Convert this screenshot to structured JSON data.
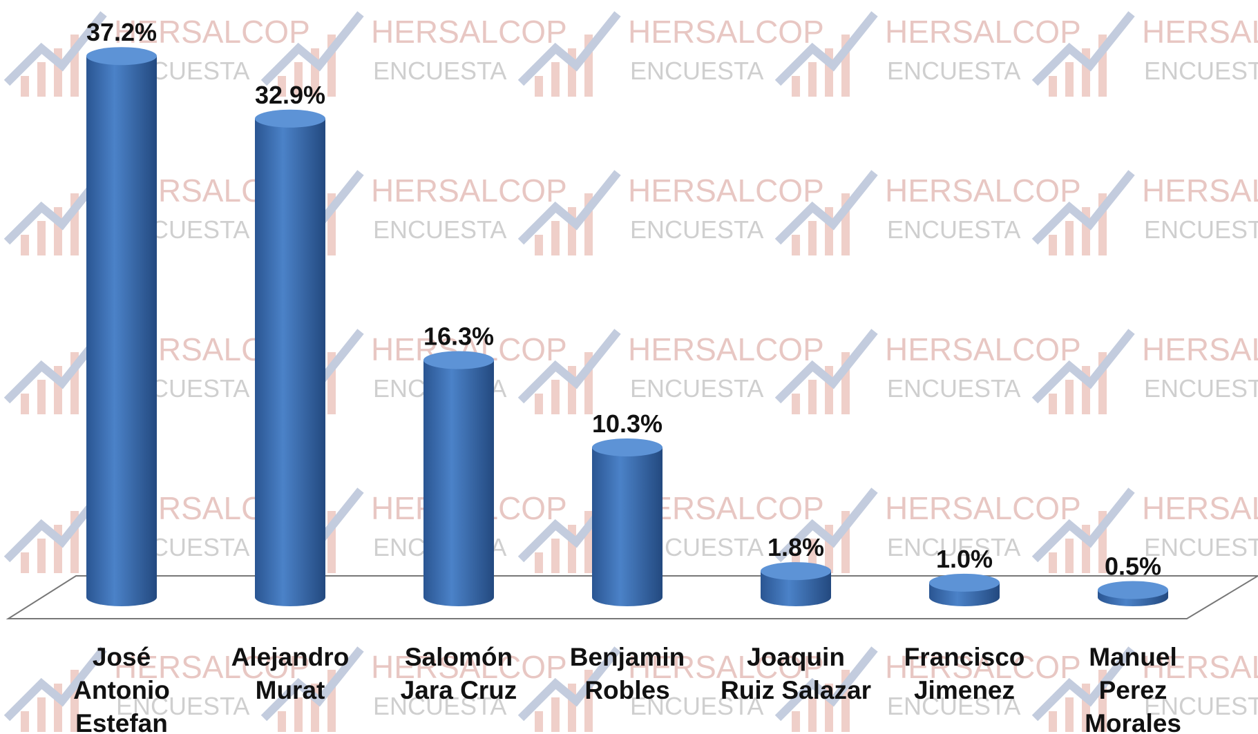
{
  "chart_data": {
    "type": "bar",
    "categories": [
      "José Antonio Estefan",
      "Alejandro Murat",
      "Salomón Jara Cruz",
      "Benjamin Robles",
      "Joaquin Ruiz Salazar",
      "Francisco Jimenez",
      "Manuel Perez Morales"
    ],
    "values": [
      37.2,
      32.9,
      16.3,
      10.3,
      1.8,
      1.0,
      0.5
    ],
    "value_labels": [
      "37.2%",
      "32.9%",
      "16.3%",
      "10.3%",
      "1.8%",
      "1.0%",
      "0.5%"
    ],
    "color": "#3a6fb5",
    "watermark": [
      "HERSALCOP",
      "ENCUESTA"
    ]
  }
}
